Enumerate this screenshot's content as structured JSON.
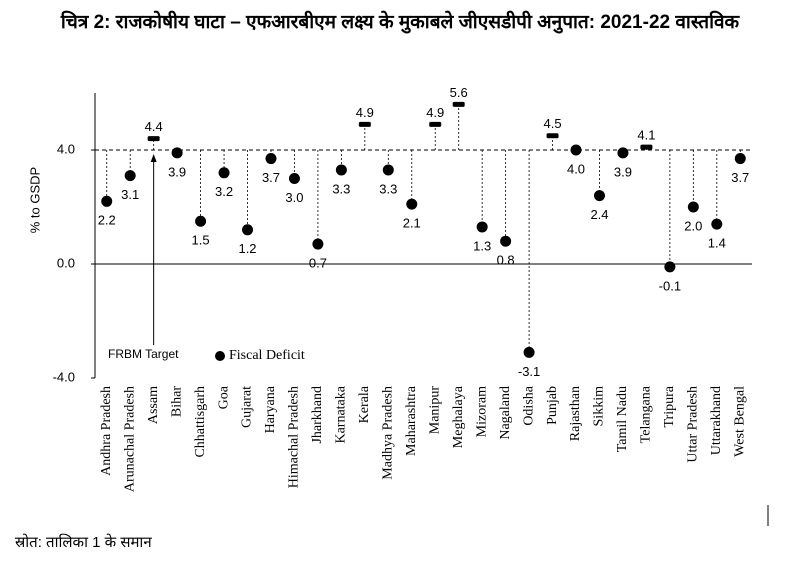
{
  "chart_data": {
    "type": "dot",
    "title": "चित्र 2: राजकोषीय घाटा – एफआरबीएम लक्ष्य के मुकाबले जीएसडीपी अनुपात: 2021-22 वास्तविक",
    "y_label": "% to GSDP",
    "categories": [
      "Andhra Pradesh",
      "Arunachal Pradesh",
      "Assam",
      "Bihar",
      "Chhattisgarh",
      "Goa",
      "Gujarat",
      "Haryana",
      "Himachal Pradesh",
      "Jharkhand",
      "Karnataka",
      "Kerala",
      "Madhya Pradesh",
      "Maharashtra",
      "Manipur",
      "Meghalaya",
      "Mizoram",
      "Nagaland",
      "Odisha",
      "Punjab",
      "Rajasthan",
      "Sikkim",
      "Tamil Nadu",
      "Telangana",
      "Tripura",
      "Uttar Pradesh",
      "Uttarakhand",
      "West Bengal"
    ],
    "series": [
      {
        "name": "Fiscal Deficit",
        "color": "#000000",
        "values": [
          2.2,
          3.1,
          4.4,
          3.9,
          1.5,
          3.2,
          1.2,
          3.7,
          3.0,
          0.7,
          3.3,
          4.9,
          3.3,
          2.1,
          4.9,
          5.6,
          1.3,
          0.8,
          -3.1,
          4.5,
          4.0,
          2.4,
          3.9,
          4.1,
          -0.1,
          2.0,
          1.4,
          3.7
        ],
        "value_labels": [
          "2.2",
          "3.1",
          "4.4",
          "3.9",
          "1.5",
          "3.2",
          "1.2",
          "3.7",
          "3.0",
          "0.7",
          "3.3",
          "4.9",
          "3.3",
          "2.1",
          "4.9",
          "5.6",
          "1.3",
          "0.8",
          "-3.1",
          "4.5",
          "4.0",
          "2.4",
          "3.9",
          "4.1",
          "-0.1",
          "2.0",
          "1.4",
          "3.7"
        ]
      }
    ],
    "target": {
      "name": "FRBM Target",
      "value": 4
    },
    "ylim": [
      -4,
      6
    ],
    "yticks": [
      {
        "value": -4,
        "label": "-4.0"
      },
      {
        "value": 0,
        "label": "0.0"
      },
      {
        "value": 4,
        "label": "4.0"
      }
    ],
    "source": "स्रोत: तालिका 1 के समान"
  }
}
